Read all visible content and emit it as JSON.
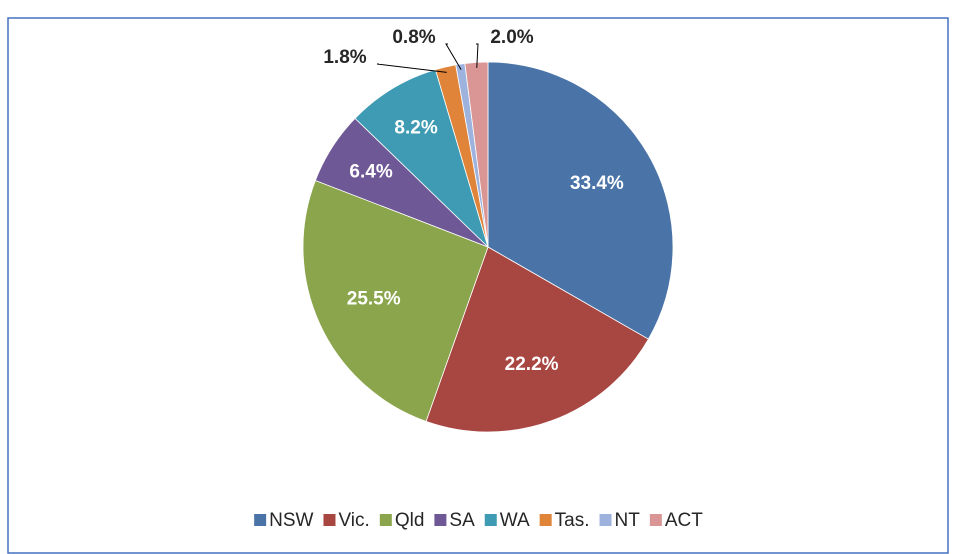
{
  "chart_data": {
    "type": "pie",
    "categories": [
      "NSW",
      "Vic.",
      "Qld",
      "SA",
      "WA",
      "Tas.",
      "NT",
      "ACT"
    ],
    "values": [
      33.4,
      22.2,
      25.5,
      6.4,
      8.2,
      1.8,
      0.8,
      2.0
    ],
    "value_labels": [
      "33.4%",
      "22.2%",
      "25.5%",
      "6.4%",
      "8.2%",
      "1.8%",
      "0.8%",
      "2.0%"
    ],
    "colors": [
      "#4a74a8",
      "#a84642",
      "#8aa54c",
      "#6f5896",
      "#3f9bb3",
      "#e0843a",
      "#9db3de",
      "#d99694"
    ],
    "legend": "bottom"
  }
}
